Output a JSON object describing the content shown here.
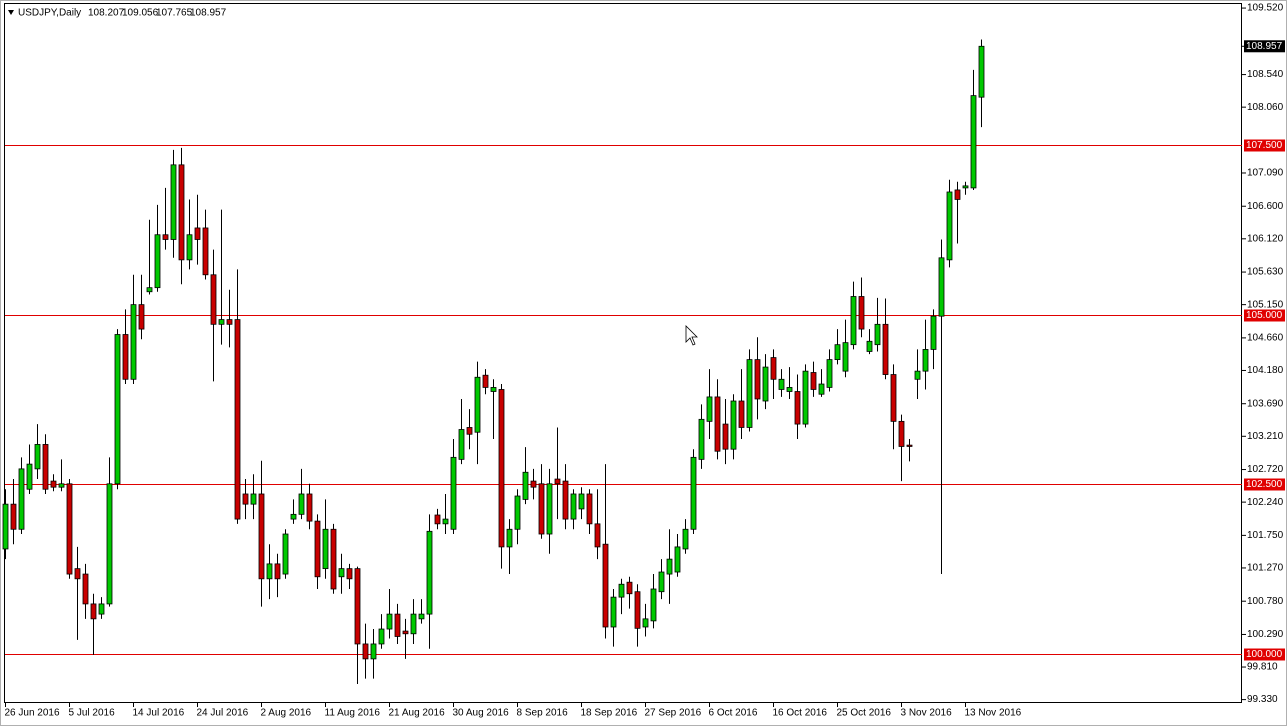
{
  "chart_data": {
    "type": "candlestick",
    "title": "USDJPY,Daily",
    "categories": [
      "26 Jun 2016",
      null,
      null,
      null,
      null,
      null,
      null,
      null,
      "5 Jul 2016",
      null,
      null,
      null,
      null,
      null,
      null,
      null,
      "14 Jul 2016",
      null,
      null,
      null,
      null,
      null,
      null,
      null,
      "24 Jul 2016",
      null,
      null,
      null,
      null,
      null,
      null,
      null,
      "2 Aug 2016",
      null,
      null,
      null,
      null,
      null,
      null,
      null,
      "11 Aug 2016",
      null,
      null,
      null,
      null,
      null,
      null,
      null,
      "21 Aug 2016",
      null,
      null,
      null,
      null,
      null,
      null,
      null,
      "30 Aug 2016",
      null,
      null,
      null,
      null,
      null,
      null,
      null,
      "8 Sep 2016",
      null,
      null,
      null,
      null,
      null,
      null,
      null,
      "18 Sep 2016",
      null,
      null,
      null,
      null,
      null,
      null,
      null,
      "27 Sep 2016",
      null,
      null,
      null,
      null,
      null,
      null,
      null,
      "6 Oct 2016",
      null,
      null,
      null,
      null,
      null,
      null,
      null,
      "16 Oct 2016",
      null,
      null,
      null,
      null,
      null,
      null,
      null,
      "25 Oct 2016",
      null,
      null,
      null,
      null,
      null,
      null,
      null,
      "3 Nov 2016",
      null,
      null,
      null,
      null,
      null,
      null,
      null,
      "13 Nov 2016",
      null,
      null
    ],
    "open": [
      101.55,
      102.21,
      101.84,
      102.43,
      102.73,
      103.09,
      102.55,
      102.46,
      102.51,
      101.26,
      101.18,
      100.74,
      100.59,
      100.74,
      102.51,
      104.71,
      104.05,
      105.15,
      105.34,
      105.4,
      106.18,
      106.11,
      107.21,
      105.81,
      106.28,
      106.28,
      105.59,
      104.86,
      104.93,
      104.93,
      102.36,
      102.21,
      102.36,
      101.11,
      101.33,
      101.18,
      101.99,
      102.06,
      102.36,
      101.96,
      101.26,
      101.84,
      101.14,
      101.26,
      101.26,
      100.15,
      99.93,
      100.15,
      100.37,
      100.59,
      100.34,
      100.3,
      100.52,
      100.59,
      102.05,
      101.92,
      101.84,
      102.87,
      103.34,
      103.27,
      104.11,
      103.87,
      103.9,
      101.58,
      101.84,
      102.28,
      102.55,
      102.51,
      101.77,
      102.58,
      102.55,
      101.99,
      102.14,
      102.36,
      101.92,
      101.62,
      100.4,
      100.84,
      101.06,
      100.92,
      100.4,
      100.49,
      100.92,
      101.18,
      101.21,
      101.55,
      101.84,
      102.87,
      103.43,
      103.79,
      103.39,
      103.02,
      103.73,
      103.34,
      104.34,
      103.73,
      104.37,
      103.9,
      103.87,
      103.87,
      103.39,
      104.15,
      103.83,
      103.93,
      104.34,
      104.17,
      104.56,
      105.27,
      104.46,
      104.56,
      104.86,
      104.12,
      103.43,
      103.08,
      104.05,
      104.17,
      104.49,
      104.98,
      105.81,
      106.84,
      106.87,
      106.87,
      108.207
    ],
    "high": [
      102.43,
      102.58,
      102.9,
      103.09,
      103.39,
      103.24,
      102.65,
      102.87,
      102.58,
      101.58,
      101.33,
      100.89,
      100.84,
      102.9,
      104.79,
      105.08,
      105.59,
      105.59,
      106.4,
      106.62,
      106.87,
      107.43,
      107.46,
      106.7,
      106.77,
      106.55,
      105.96,
      106.55,
      105.37,
      105.67,
      102.58,
      102.65,
      102.85,
      101.62,
      101.48,
      101.84,
      102.28,
      102.73,
      102.51,
      102.06,
      102.28,
      101.92,
      101.48,
      101.33,
      101.29,
      100.45,
      100.37,
      100.59,
      100.96,
      100.74,
      100.52,
      100.81,
      100.81,
      102.06,
      102.14,
      102.36,
      103.17,
      103.76,
      103.61,
      104.31,
      104.2,
      104.05,
      103.98,
      101.99,
      102.43,
      103.05,
      102.73,
      102.8,
      102.73,
      103.34,
      102.8,
      102.43,
      102.46,
      102.43,
      102.43,
      102.8,
      100.96,
      101.11,
      101.14,
      101.03,
      100.74,
      101.18,
      101.4,
      101.84,
      101.77,
      101.99,
      103.02,
      103.68,
      104.2,
      104.05,
      103.76,
      103.83,
      104.2,
      104.49,
      104.67,
      104.42,
      104.49,
      104.2,
      104.23,
      104.12,
      104.27,
      104.31,
      104.2,
      104.49,
      104.79,
      104.93,
      105.49,
      105.55,
      104.79,
      105.25,
      105.24,
      104.27,
      103.53,
      103.17,
      104.49,
      104.93,
      105.08,
      106.11,
      106.99,
      106.96,
      106.96,
      108.61,
      109.056
    ],
    "low": [
      101.4,
      101.62,
      101.77,
      102.36,
      102.58,
      102.36,
      102.4,
      102.4,
      101.11,
      100.21,
      100.52,
      99.99,
      100.52,
      100.7,
      102.43,
      103.98,
      103.98,
      104.64,
      105.3,
      105.34,
      105.96,
      105.84,
      105.45,
      105.67,
      105.74,
      105.52,
      104.02,
      104.56,
      104.52,
      101.92,
      101.99,
      101.99,
      100.7,
      100.81,
      100.84,
      101.11,
      101.92,
      101.99,
      101.84,
      100.96,
      101.11,
      100.89,
      100.89,
      100.96,
      99.56,
      99.64,
      99.64,
      100.08,
      100.23,
      100.15,
      99.93,
      100.15,
      100.45,
      100.08,
      101.84,
      101.77,
      101.77,
      102.8,
      103.02,
      102.8,
      103.83,
      103.17,
      101.26,
      101.18,
      101.62,
      102.21,
      102.28,
      101.7,
      101.48,
      101.99,
      101.84,
      101.84,
      101.99,
      101.77,
      101.4,
      100.23,
      100.11,
      100.59,
      100.67,
      100.11,
      100.26,
      100.38,
      100.81,
      100.74,
      101.14,
      101.48,
      101.77,
      102.73,
      103.17,
      102.87,
      102.8,
      102.87,
      103.17,
      103.28,
      103.46,
      103.61,
      103.76,
      103.79,
      103.76,
      103.17,
      103.34,
      103.79,
      103.79,
      103.87,
      104.27,
      104.08,
      104.49,
      104.67,
      104.42,
      104.46,
      104.05,
      103.02,
      102.55,
      102.84,
      103.76,
      103.9,
      104.2,
      101.18,
      105.7,
      106.05,
      106.77,
      106.84,
      107.765
    ],
    "close": [
      102.21,
      101.84,
      102.73,
      102.8,
      103.09,
      102.43,
      102.46,
      102.51,
      101.18,
      101.11,
      100.74,
      100.52,
      100.74,
      102.51,
      104.71,
      104.05,
      105.15,
      104.79,
      105.4,
      106.18,
      106.11,
      107.21,
      105.81,
      106.18,
      106.11,
      105.59,
      104.86,
      104.93,
      104.86,
      101.99,
      102.21,
      102.36,
      101.11,
      101.33,
      101.11,
      101.77,
      102.06,
      102.36,
      101.96,
      101.14,
      101.84,
      100.96,
      101.26,
      101.11,
      100.15,
      99.93,
      100.15,
      100.37,
      100.59,
      100.26,
      100.3,
      100.59,
      100.59,
      101.81,
      101.92,
      101.99,
      102.9,
      103.31,
      103.24,
      104.08,
      103.93,
      103.93,
      101.58,
      101.84,
      102.33,
      102.68,
      102.46,
      101.77,
      102.51,
      102.51,
      101.99,
      102.36,
      102.36,
      101.92,
      101.58,
      100.4,
      100.84,
      101.03,
      100.89,
      100.38,
      100.52,
      100.96,
      101.21,
      101.4,
      101.58,
      101.84,
      102.9,
      103.46,
      103.79,
      102.99,
      103.02,
      103.73,
      103.34,
      104.34,
      103.76,
      104.23,
      104.05,
      104.05,
      103.93,
      103.39,
      104.17,
      103.9,
      103.98,
      104.34,
      104.56,
      104.59,
      105.27,
      104.79,
      104.61,
      104.86,
      104.12,
      103.43,
      103.06,
      103.06,
      104.17,
      104.49,
      104.98,
      105.84,
      106.81,
      106.7,
      106.9,
      108.23,
      108.957
    ],
    "up_color": "#00c800",
    "down_color": "#c80000",
    "level_color": "#e00000",
    "ylim": [
      99.28,
      109.58
    ],
    "yticks": [
      {
        "value": 109.52,
        "label": "109.520"
      },
      {
        "value": 108.54,
        "label": "108.540"
      },
      {
        "value": 108.06,
        "label": "108.060"
      },
      {
        "value": 107.09,
        "label": "107.090"
      },
      {
        "value": 106.6,
        "label": "106.600"
      },
      {
        "value": 106.12,
        "label": "106.120"
      },
      {
        "value": 105.63,
        "label": "105.630"
      },
      {
        "value": 105.15,
        "label": "105.150"
      },
      {
        "value": 104.66,
        "label": "104.660"
      },
      {
        "value": 104.18,
        "label": "104.180"
      },
      {
        "value": 103.69,
        "label": "103.690"
      },
      {
        "value": 103.21,
        "label": "103.210"
      },
      {
        "value": 102.72,
        "label": "102.720"
      },
      {
        "value": 102.24,
        "label": "102.240"
      },
      {
        "value": 101.75,
        "label": "101.750"
      },
      {
        "value": 101.27,
        "label": "101.270"
      },
      {
        "value": 100.78,
        "label": "100.780"
      },
      {
        "value": 100.29,
        "label": "100.290"
      },
      {
        "value": 99.81,
        "label": "99.810"
      },
      {
        "value": 99.33,
        "label": "99.330"
      }
    ],
    "levels": [
      {
        "value": 107.5,
        "label": "107.500"
      },
      {
        "value": 105,
        "label": "105.000"
      },
      {
        "value": 102.5,
        "label": "102.500"
      },
      {
        "value": 100,
        "label": "100.000"
      }
    ]
  }
}
